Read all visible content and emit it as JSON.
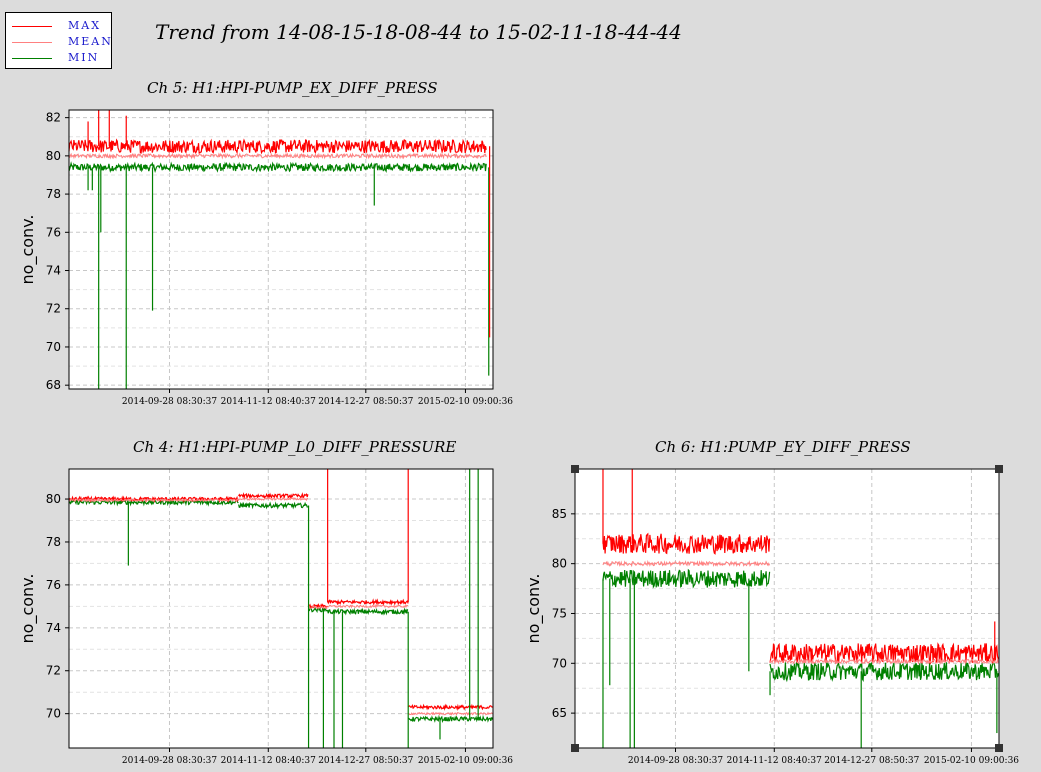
{
  "page": {
    "title": "Trend from 14-08-15-18-08-44 to 15-02-11-18-44-44"
  },
  "legend": {
    "items": [
      {
        "label": "MAX",
        "color": "#ff0000"
      },
      {
        "label": "MEAN",
        "color": "#ff8080"
      },
      {
        "label": "MIN",
        "color": "#008000"
      }
    ]
  },
  "colors": {
    "max": "#ff0000",
    "mean": "#ff8080",
    "min": "#008000",
    "grid": "#c8c8c8"
  },
  "chart_data": [
    {
      "id": "ch5",
      "type": "line",
      "title": "Ch 5: H1:HPI-PUMP_EX_DIFF_PRESS",
      "ylabel": "no_conv.",
      "xlim": [
        0,
        1
      ],
      "ylim": [
        67.8,
        82.4
      ],
      "yticks": [
        68,
        70,
        72,
        74,
        76,
        78,
        80,
        82
      ],
      "xticks": [
        {
          "pos": 0.237,
          "label": "2014-09-28 08:30:37"
        },
        {
          "pos": 0.47,
          "label": "2014-11-12 08:40:37"
        },
        {
          "pos": 0.7,
          "label": "2014-12-27 08:50:37"
        },
        {
          "pos": 0.935,
          "label": "2015-02-10 09:00:36"
        }
      ],
      "grid": true,
      "series": [
        {
          "name": "MAX",
          "segments": [
            [
              0.0,
              0.985,
              80.5
            ]
          ],
          "noise": 0.35
        },
        {
          "name": "MEAN",
          "segments": [
            [
              0.0,
              0.985,
              80.0
            ]
          ],
          "noise": 0.1
        },
        {
          "name": "MIN",
          "segments": [
            [
              0.0,
              0.985,
              79.4
            ]
          ],
          "noise": 0.2
        }
      ],
      "spikes": [
        {
          "x": 0.045,
          "from": 79.4,
          "to": 78.2,
          "s": "MIN"
        },
        {
          "x": 0.055,
          "from": 79.4,
          "to": 78.2,
          "s": "MIN"
        },
        {
          "x": 0.075,
          "from": 79.4,
          "to": 76.0,
          "s": "MIN"
        },
        {
          "x": 0.07,
          "from": 79.4,
          "to": 67.8,
          "s": "MIN"
        },
        {
          "x": 0.135,
          "from": 79.4,
          "to": 67.8,
          "s": "MIN"
        },
        {
          "x": 0.197,
          "from": 79.4,
          "to": 71.9,
          "s": "MIN"
        },
        {
          "x": 0.72,
          "from": 79.4,
          "to": 77.4,
          "s": "MIN"
        },
        {
          "x": 0.99,
          "from": 79.4,
          "to": 68.5,
          "s": "MIN"
        },
        {
          "x": 0.045,
          "from": 80.5,
          "to": 81.8,
          "s": "MAX"
        },
        {
          "x": 0.07,
          "from": 80.5,
          "to": 82.4,
          "s": "MAX"
        },
        {
          "x": 0.095,
          "from": 80.5,
          "to": 82.4,
          "s": "MAX"
        },
        {
          "x": 0.135,
          "from": 80.5,
          "to": 82.1,
          "s": "MAX"
        },
        {
          "x": 0.992,
          "from": 80.5,
          "to": 70.5,
          "s": "MAX"
        }
      ]
    },
    {
      "id": "ch4",
      "type": "line",
      "title": "Ch 4: H1:HPI-PUMP_L0_DIFF_PRESSURE",
      "ylabel": "no_conv.",
      "xlim": [
        0,
        1
      ],
      "ylim": [
        68.4,
        81.4
      ],
      "yticks": [
        70,
        72,
        74,
        76,
        78,
        80
      ],
      "xticks": [
        {
          "pos": 0.237,
          "label": "2014-09-28 08:30:37"
        },
        {
          "pos": 0.47,
          "label": "2014-11-12 08:40:37"
        },
        {
          "pos": 0.7,
          "label": "2014-12-27 08:50:37"
        },
        {
          "pos": 0.935,
          "label": "2015-02-10 09:00:36"
        }
      ],
      "grid": true,
      "series": [
        {
          "name": "MAX",
          "segments": [
            [
              0.0,
              0.4,
              80.0
            ],
            [
              0.4,
              0.565,
              80.15
            ],
            [
              0.565,
              0.61,
              75.0
            ],
            [
              0.61,
              0.8,
              75.2
            ],
            [
              0.8,
              1.0,
              70.3
            ]
          ],
          "noise": 0.08
        },
        {
          "name": "MEAN",
          "segments": [
            [
              0.0,
              0.4,
              79.95
            ],
            [
              0.4,
              0.565,
              80.0
            ],
            [
              0.565,
              0.61,
              74.95
            ],
            [
              0.61,
              0.8,
              75.0
            ],
            [
              0.8,
              1.0,
              70.0
            ]
          ],
          "noise": 0.05
        },
        {
          "name": "MIN",
          "segments": [
            [
              0.0,
              0.4,
              79.85
            ],
            [
              0.4,
              0.565,
              79.7
            ],
            [
              0.565,
              0.61,
              74.85
            ],
            [
              0.61,
              0.8,
              74.75
            ],
            [
              0.8,
              1.0,
              69.75
            ]
          ],
          "noise": 0.1
        }
      ],
      "spikes": [
        {
          "x": 0.14,
          "from": 79.85,
          "to": 76.9,
          "s": "MIN"
        },
        {
          "x": 0.565,
          "from": 79.7,
          "to": 68.4,
          "s": "MIN"
        },
        {
          "x": 0.6,
          "from": 74.85,
          "to": 68.4,
          "s": "MIN"
        },
        {
          "x": 0.625,
          "from": 74.75,
          "to": 68.4,
          "s": "MIN"
        },
        {
          "x": 0.645,
          "from": 74.75,
          "to": 68.4,
          "s": "MIN"
        },
        {
          "x": 0.8,
          "from": 74.75,
          "to": 68.4,
          "s": "MIN"
        },
        {
          "x": 0.875,
          "from": 69.75,
          "to": 68.8,
          "s": "MIN"
        },
        {
          "x": 0.945,
          "from": 69.75,
          "to": 81.4,
          "s": "MIN"
        },
        {
          "x": 0.965,
          "from": 69.75,
          "to": 81.4,
          "s": "MIN"
        },
        {
          "x": 0.61,
          "from": 75.2,
          "to": 81.4,
          "s": "MAX"
        },
        {
          "x": 0.8,
          "from": 75.2,
          "to": 81.4,
          "s": "MAX"
        }
      ]
    },
    {
      "id": "ch6",
      "type": "line",
      "title": "Ch 6: H1:PUMP_EY_DIFF_PRESS",
      "ylabel": "no_conv.",
      "xlim": [
        0,
        1
      ],
      "ylim": [
        61.5,
        89.5
      ],
      "yticks": [
        65,
        70,
        75,
        80,
        85
      ],
      "xticks": [
        {
          "pos": 0.237,
          "label": "2014-09-28 08:30:37"
        },
        {
          "pos": 0.47,
          "label": "2014-11-12 08:40:37"
        },
        {
          "pos": 0.7,
          "label": "2014-12-27 08:50:37"
        },
        {
          "pos": 0.935,
          "label": "2015-02-10 09:00:36"
        }
      ],
      "grid": true,
      "series": [
        {
          "name": "MAX",
          "segments": [
            [
              0.066,
              0.46,
              82.0
            ],
            [
              0.46,
              1.0,
              71.0
            ]
          ],
          "noise": 1.0
        },
        {
          "name": "MEAN",
          "segments": [
            [
              0.066,
              0.46,
              80.0
            ],
            [
              0.46,
              1.0,
              70.2
            ]
          ],
          "noise": 0.2
        },
        {
          "name": "MIN",
          "segments": [
            [
              0.066,
              0.46,
              78.5
            ],
            [
              0.46,
              1.0,
              69.2
            ]
          ],
          "noise": 0.9
        }
      ],
      "spikes": [
        {
          "x": 0.066,
          "from": 78.5,
          "to": 61.5,
          "s": "MIN"
        },
        {
          "x": 0.082,
          "from": 78.5,
          "to": 67.8,
          "s": "MIN"
        },
        {
          "x": 0.13,
          "from": 78.5,
          "to": 61.5,
          "s": "MIN"
        },
        {
          "x": 0.14,
          "from": 78.5,
          "to": 61.5,
          "s": "MIN"
        },
        {
          "x": 0.41,
          "from": 78.5,
          "to": 69.2,
          "s": "MIN"
        },
        {
          "x": 0.46,
          "from": 69.2,
          "to": 66.8,
          "s": "MIN"
        },
        {
          "x": 0.675,
          "from": 69.2,
          "to": 61.5,
          "s": "MIN"
        },
        {
          "x": 0.995,
          "from": 69.2,
          "to": 63.0,
          "s": "MIN"
        },
        {
          "x": 0.066,
          "from": 82.0,
          "to": 89.5,
          "s": "MAX"
        },
        {
          "x": 0.135,
          "from": 82.0,
          "to": 89.5,
          "s": "MAX"
        },
        {
          "x": 0.99,
          "from": 71.0,
          "to": 74.2,
          "s": "MAX"
        }
      ]
    }
  ]
}
